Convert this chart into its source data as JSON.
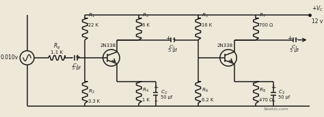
{
  "bg_color": "#ede8d8",
  "line_color": "#1a1a1a",
  "text_color": "#1a1a1a",
  "lw": 1.1,
  "fig_w": 4.74,
  "fig_h": 1.72,
  "watermark": "Seekio.com",
  "vs_label": "0.010v",
  "Q1_label": "2N338",
  "Q2_label": "2N338",
  "vcc_label": "+ V",
  "vcc_sub": "C",
  "vcc_val": "12 v",
  "Rg_label": "R_g",
  "Rg_val": "1.1 K",
  "R1_label": "R_1",
  "R1_val": "22 K",
  "R2_label": "R_2",
  "R2_val": "3.3 K",
  "R3_label": "R_3",
  "R3_val": "6 K",
  "R4_label": "R_4",
  "R4_val": "1 K",
  "R5_label": "R_5",
  "R5_val": "16 K",
  "R6_label": "R_6",
  "R6_val": "6.2 K",
  "R7_label": "R_7",
  "R7_val": "700 Ω",
  "R8_label": "R_8",
  "R8_val": "470 Ω",
  "C1in_label": "C_1",
  "C1in_val": "5 μf",
  "C1mid_label": "C_1",
  "C1mid_val": "5 μf",
  "C1out_label": "C_1",
  "C1out_val": "5 μf",
  "C2mid_label": "C_2",
  "C2mid_val": "50 μf",
  "C2out_label": "C_2",
  "C2out_val": "50 μf"
}
